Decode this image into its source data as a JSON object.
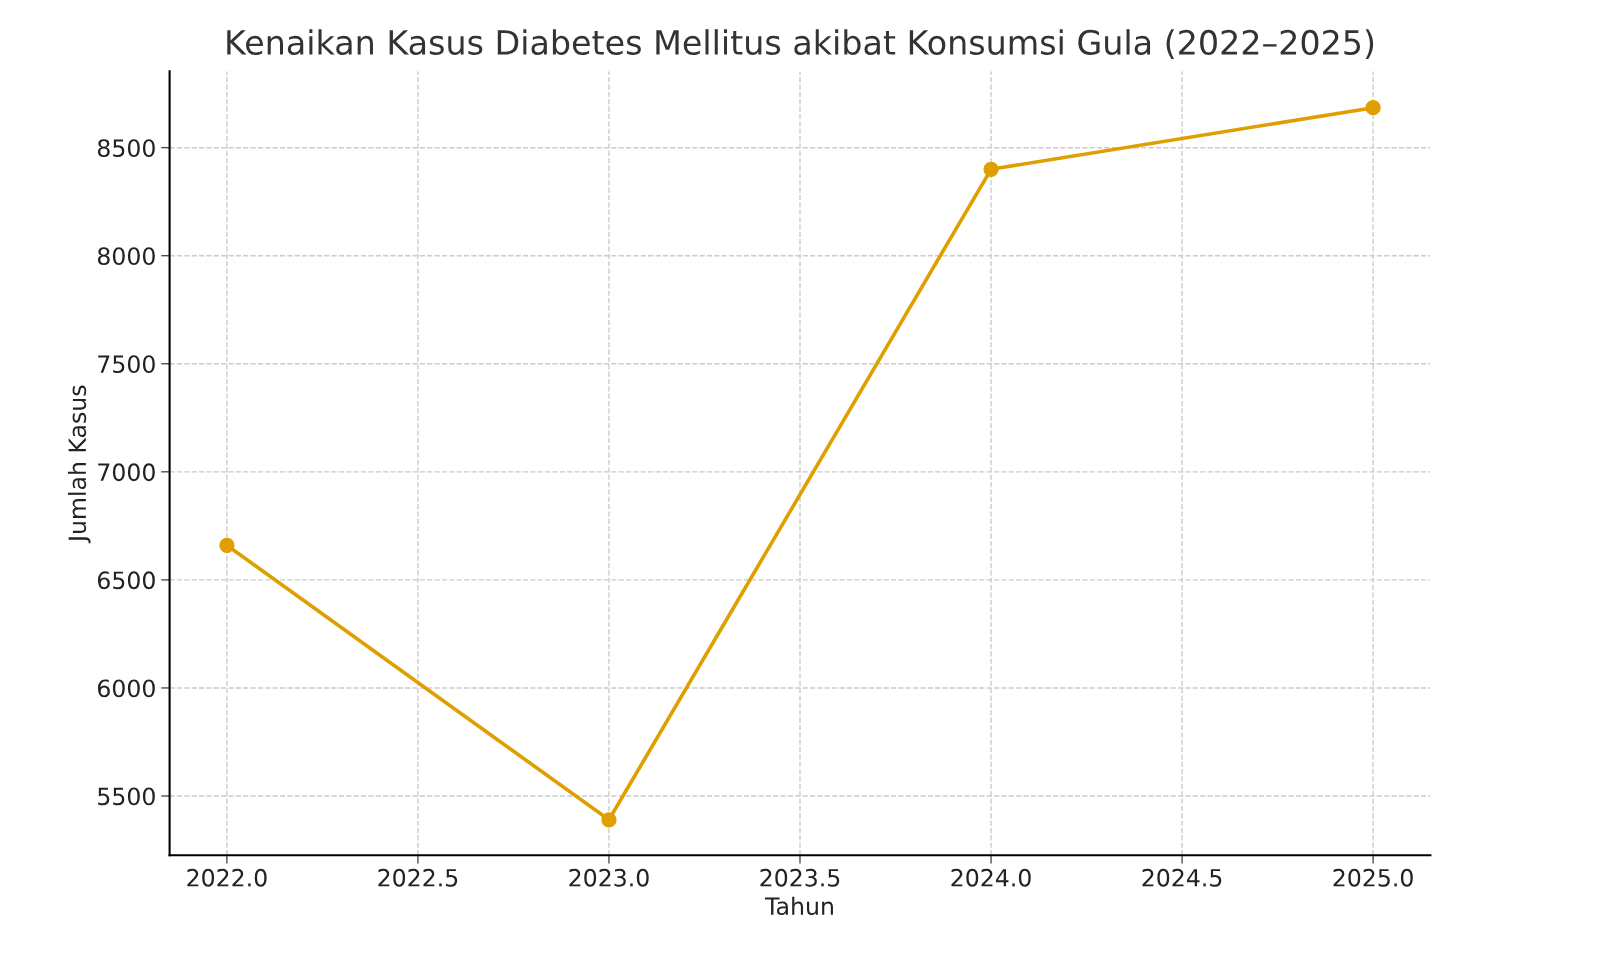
{
  "chart_data": {
    "type": "line",
    "title": "Kenaikan Kasus Diabetes Mellitus akibat Konsumsi Gula (2022–2025)",
    "xlabel": "Tahun",
    "ylabel": "Jumlah Kasus",
    "x": [
      2022,
      2023,
      2024,
      2025
    ],
    "series": [
      {
        "color": "#e09f00",
        "values": [
          6660,
          5390,
          8400,
          8685
        ]
      }
    ],
    "xlim": [
      2021.85,
      2025.15
    ],
    "xticks": [
      {
        "value": 2022,
        "label": "2022.0"
      },
      {
        "value": 2022.5,
        "label": "2022.5"
      },
      {
        "value": 2023,
        "label": "2023.0"
      },
      {
        "value": 2023.5,
        "label": "2023.5"
      },
      {
        "value": 2024,
        "label": "2024.0"
      },
      {
        "value": 2024.5,
        "label": "2024.5"
      },
      {
        "value": 2025,
        "label": "2025.0"
      }
    ],
    "ylim": [
      5226,
      8854
    ],
    "yticks": [
      5500,
      6000,
      6500,
      7000,
      7500,
      8000,
      8500
    ],
    "grid": true,
    "marker": "circle",
    "line_style": "solid"
  }
}
